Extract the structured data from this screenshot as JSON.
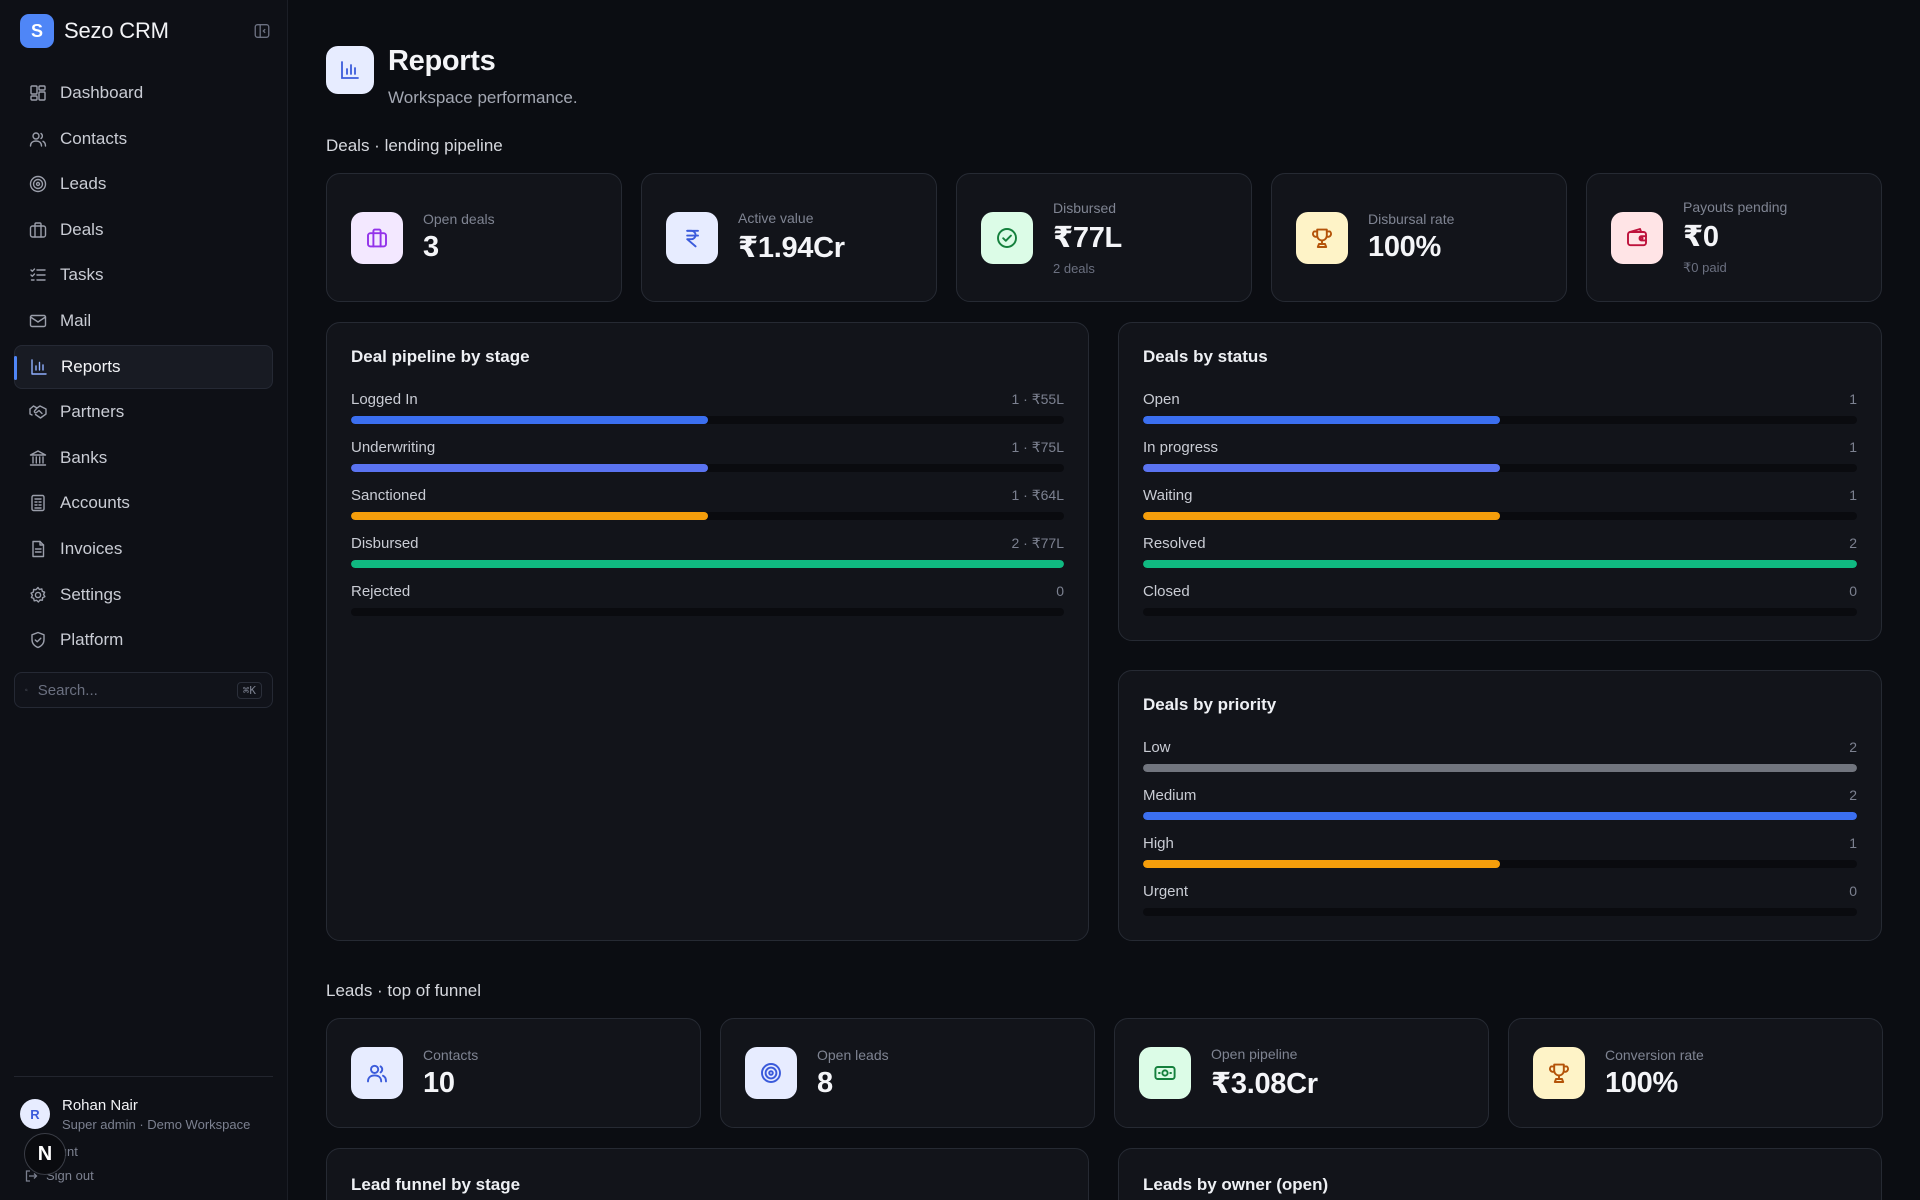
{
  "app": {
    "logo_letter": "S",
    "name": "Sezo CRM"
  },
  "nav": [
    {
      "label": "Dashboard",
      "icon": "dashboard-icon"
    },
    {
      "label": "Contacts",
      "icon": "users-icon"
    },
    {
      "label": "Leads",
      "icon": "target-icon"
    },
    {
      "label": "Deals",
      "icon": "briefcase-icon"
    },
    {
      "label": "Tasks",
      "icon": "checklist-icon"
    },
    {
      "label": "Mail",
      "icon": "mail-icon"
    },
    {
      "label": "Reports",
      "icon": "bar-chart-icon",
      "active": true
    },
    {
      "label": "Partners",
      "icon": "handshake-icon"
    },
    {
      "label": "Banks",
      "icon": "bank-icon"
    },
    {
      "label": "Accounts",
      "icon": "ledger-icon"
    },
    {
      "label": "Invoices",
      "icon": "invoice-icon"
    },
    {
      "label": "Settings",
      "icon": "gear-icon"
    },
    {
      "label": "Platform",
      "icon": "shield-icon"
    }
  ],
  "search": {
    "placeholder": "Search...",
    "shortcut": "⌘K"
  },
  "user": {
    "initial": "R",
    "name": "Rohan Nair",
    "role": "Super admin · Demo Workspace",
    "account_label": "count",
    "signout_label": "Sign out",
    "badge": "N"
  },
  "page": {
    "title": "Reports",
    "subtitle": "Workspace performance."
  },
  "deals_section": {
    "title": "Deals · lending pipeline",
    "stats": [
      {
        "label": "Open deals",
        "value": "3",
        "sub": "",
        "icon": "briefcase-icon",
        "bg": "#f3e8ff",
        "fg": "#9333ea"
      },
      {
        "label": "Active value",
        "value": "₹1.94Cr",
        "sub": "",
        "icon": "rupee-icon",
        "bg": "#e7ecff",
        "fg": "#3b5bdb"
      },
      {
        "label": "Disbursed",
        "value": "₹77L",
        "sub": "2 deals",
        "icon": "check-circle-icon",
        "bg": "#dcfce7",
        "fg": "#15803d"
      },
      {
        "label": "Disbursal rate",
        "value": "100%",
        "sub": "",
        "icon": "trophy-icon",
        "bg": "#fef3c7",
        "fg": "#b45309"
      },
      {
        "label": "Payouts pending",
        "value": "₹0",
        "sub": "₹0 paid",
        "icon": "wallet-icon",
        "bg": "#ffe4e6",
        "fg": "#be123c"
      }
    ]
  },
  "pipeline_panel": {
    "title": "Deal pipeline by stage",
    "rows": [
      {
        "label": "Logged In",
        "count": "1 · ₹55L",
        "fraction": 0.5,
        "color": "#3b6ff0"
      },
      {
        "label": "Underwriting",
        "count": "1 · ₹75L",
        "fraction": 0.5,
        "color": "#5a73f0"
      },
      {
        "label": "Sanctioned",
        "count": "1 · ₹64L",
        "fraction": 0.5,
        "color": "#f59e0b"
      },
      {
        "label": "Disbursed",
        "count": "2 · ₹77L",
        "fraction": 1.0,
        "color": "#10b981"
      },
      {
        "label": "Rejected",
        "count": "0",
        "fraction": 0,
        "color": "#ef4444"
      }
    ]
  },
  "status_panel": {
    "title": "Deals by status",
    "rows": [
      {
        "label": "Open",
        "count": "1",
        "fraction": 0.5,
        "color": "#3b6ff0"
      },
      {
        "label": "In progress",
        "count": "1",
        "fraction": 0.5,
        "color": "#5a73f0"
      },
      {
        "label": "Waiting",
        "count": "1",
        "fraction": 0.5,
        "color": "#f59e0b"
      },
      {
        "label": "Resolved",
        "count": "2",
        "fraction": 1.0,
        "color": "#10b981"
      },
      {
        "label": "Closed",
        "count": "0",
        "fraction": 0,
        "color": "#6b7280"
      }
    ]
  },
  "priority_panel": {
    "title": "Deals by priority",
    "rows": [
      {
        "label": "Low",
        "count": "2",
        "fraction": 1.0,
        "color": "#71757e"
      },
      {
        "label": "Medium",
        "count": "2",
        "fraction": 1.0,
        "color": "#3b6ff0"
      },
      {
        "label": "High",
        "count": "1",
        "fraction": 0.5,
        "color": "#f59e0b"
      },
      {
        "label": "Urgent",
        "count": "0",
        "fraction": 0,
        "color": "#ef4444"
      }
    ]
  },
  "leads_section": {
    "title": "Leads · top of funnel",
    "stats": [
      {
        "label": "Contacts",
        "value": "10",
        "icon": "users-icon",
        "bg": "#e7ecff",
        "fg": "#3b5bdb"
      },
      {
        "label": "Open leads",
        "value": "8",
        "icon": "target-icon",
        "bg": "#e7ecff",
        "fg": "#3b5bdb"
      },
      {
        "label": "Open pipeline",
        "value": "₹3.08Cr",
        "icon": "banknote-icon",
        "bg": "#dcfce7",
        "fg": "#15803d"
      },
      {
        "label": "Conversion rate",
        "value": "100%",
        "icon": "trophy-icon",
        "bg": "#fef3c7",
        "fg": "#b45309"
      }
    ]
  },
  "bottom_panels": {
    "funnel_title": "Lead funnel by stage",
    "owner_title": "Leads by owner (open)"
  }
}
